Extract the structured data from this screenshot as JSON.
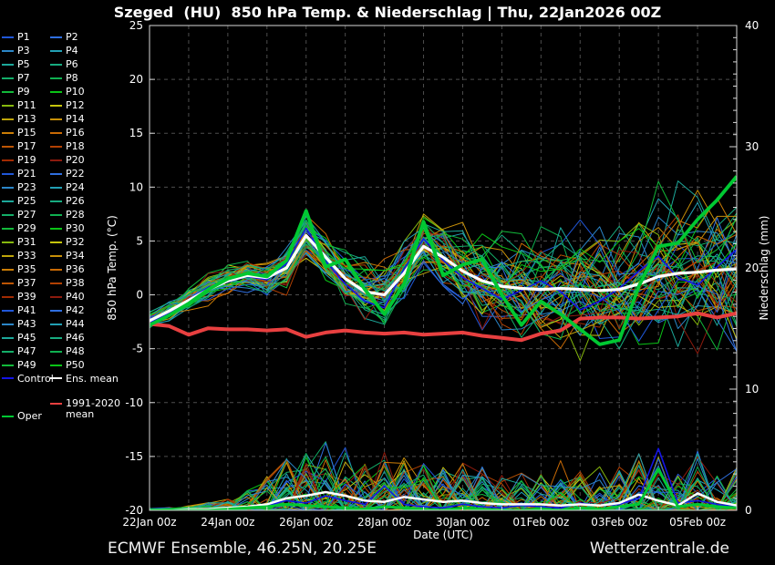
{
  "title": "Szeged  (HU)  850 hPa Temp. & Niederschlag | Thu, 22Jan2026 00Z",
  "footer": {
    "left": "ECMWF Ensemble, 46.25N, 20.25E",
    "right": "Wetterzentrale.de"
  },
  "legend": {
    "members_prefix": "P",
    "member_count": 50,
    "control_label": "Control",
    "ens_mean_label": "Ens. mean",
    "clim_label_line1": "1991-2020",
    "clim_label_line2": "mean",
    "oper_label": "Oper",
    "control_color": "#1414e6",
    "ens_mean_color": "#ffffff",
    "clim_color": "#e84040",
    "oper_color": "#00c832",
    "palette20": [
      "#2057d8",
      "#2f6fe0",
      "#2b86c8",
      "#22a0b4",
      "#1ca89a",
      "#17ac80",
      "#13ae68",
      "#0fb050",
      "#12b93a",
      "#0ac416",
      "#86b80e",
      "#c6c50c",
      "#bfa50a",
      "#c89008",
      "#cb7d06",
      "#c96a05",
      "#bd5504",
      "#b24103",
      "#a22b02",
      "#8d1b0e"
    ]
  },
  "chart_data": {
    "type": "line",
    "title": "Szeged  (HU)  850 hPa Temp. & Niederschlag | Thu, 22Jan2026 00Z",
    "x_axis": {
      "label": "Date (UTC)",
      "tick_labels": [
        "22Jan 00z",
        "24Jan 00z",
        "26Jan 00z",
        "28Jan 00z",
        "30Jan 00z",
        "01Feb 00z",
        "03Feb 00z",
        "05Feb 00z"
      ],
      "span_hours": 360,
      "label_every_hours": 48,
      "grid_every_hours": 24
    },
    "y_left": {
      "label": "850 hPa Temp. (°C)",
      "min": -20,
      "max": 25,
      "ticks": [
        25,
        20,
        15,
        10,
        5,
        0,
        -5,
        -10,
        -15,
        -20
      ]
    },
    "y_right": {
      "label": "Niederschlag (mm)",
      "min": 0,
      "max": 40,
      "ticks": [
        40,
        30,
        20,
        10,
        0
      ],
      "minor_tick_every_mm": 1
    },
    "style": {
      "grid_color": "#4d4d4d",
      "border_color": "#d9d9d9",
      "background": "#000000",
      "grid_dash": "4 4"
    },
    "time_step_hours": 12,
    "series": {
      "ens_mean_temp": [
        -2.4,
        -1.5,
        -0.5,
        0.5,
        1.3,
        1.8,
        1.6,
        2.5,
        5.5,
        3.5,
        1.5,
        0.3,
        0.0,
        2.0,
        4.5,
        3.5,
        2.2,
        1.3,
        0.8,
        0.6,
        0.5,
        0.6,
        0.5,
        0.4,
        0.5,
        1.0,
        1.7,
        2.0,
        2.1,
        2.3,
        2.4
      ],
      "oper_temp": [
        -2.8,
        -1.9,
        -0.8,
        0.5,
        1.5,
        2.0,
        1.7,
        3.2,
        7.8,
        2.6,
        3.3,
        0.5,
        -1.8,
        1.0,
        6.8,
        1.8,
        2.8,
        3.3,
        0.0,
        -2.8,
        -0.6,
        -1.8,
        -3.2,
        -4.6,
        -4.2,
        0.8,
        4.5,
        4.8,
        7.0,
        8.8,
        11.0
      ],
      "control_temp": [
        -2.6,
        -1.7,
        -0.4,
        0.7,
        1.2,
        1.7,
        1.4,
        2.9,
        6.2,
        3.1,
        1.0,
        -0.6,
        -1.2,
        2.4,
        5.2,
        3.2,
        1.6,
        0.6,
        -0.4,
        0.4,
        1.3,
        0.3,
        -1.4,
        -0.6,
        0.6,
        2.2,
        3.6,
        1.6,
        0.9,
        2.6,
        4.2
      ],
      "clim_mean_temp": [
        -2.7,
        -2.9,
        -3.7,
        -3.1,
        -3.2,
        -3.2,
        -3.3,
        -3.2,
        -3.9,
        -3.5,
        -3.3,
        -3.5,
        -3.6,
        -3.5,
        -3.7,
        -3.6,
        -3.5,
        -3.8,
        -4.0,
        -4.2,
        -3.6,
        -3.3,
        -2.2,
        -2.1,
        -2.1,
        -2.2,
        -2.1,
        -2.0,
        -1.7,
        -2.1,
        -1.7
      ],
      "ens_mean_precip": [
        0,
        0,
        0.1,
        0.1,
        0.2,
        0.3,
        0.5,
        1.0,
        1.2,
        1.5,
        1.2,
        0.8,
        0.7,
        1.1,
        0.9,
        0.7,
        0.8,
        0.6,
        0.5,
        0.5,
        0.5,
        0.4,
        0.5,
        0.4,
        0.6,
        1.3,
        0.8,
        0.4,
        1.4,
        0.7,
        0.4
      ],
      "oper_precip": [
        0,
        0,
        0,
        0,
        0.1,
        0.2,
        0.3,
        0.5,
        0.4,
        0.3,
        0.2,
        0.1,
        0.3,
        0.2,
        0.1,
        0,
        0.2,
        0.1,
        0,
        0,
        0.1,
        0,
        0.2,
        0.1,
        0.3,
        0.5,
        3.4,
        0.3,
        0.5,
        0.3,
        0.2
      ],
      "control_precip": [
        0,
        0,
        0,
        0.1,
        0.1,
        0.2,
        0.4,
        0.8,
        0.6,
        1.2,
        0.8,
        0.5,
        2.0,
        0.5,
        0.3,
        0.2,
        0.5,
        0.3,
        0.2,
        0.4,
        0.3,
        0.2,
        0.6,
        0.4,
        0.5,
        1.0,
        5.1,
        0.6,
        0.8,
        0.5,
        0.3
      ]
    },
    "ensemble_generation": {
      "seed": 20260122,
      "temp_spread_start": 0.8,
      "temp_spread_end": 6.8,
      "precip_max": 10,
      "precip_event_profile": [
        0.02,
        0.03,
        0.05,
        0.08,
        0.12,
        0.2,
        0.35,
        0.55,
        0.6,
        0.7,
        0.65,
        0.5,
        0.6,
        0.55,
        0.5,
        0.45,
        0.5,
        0.45,
        0.4,
        0.38,
        0.38,
        0.32,
        0.42,
        0.38,
        0.5,
        0.6,
        0.55,
        0.4,
        0.6,
        0.5,
        0.45
      ]
    }
  }
}
